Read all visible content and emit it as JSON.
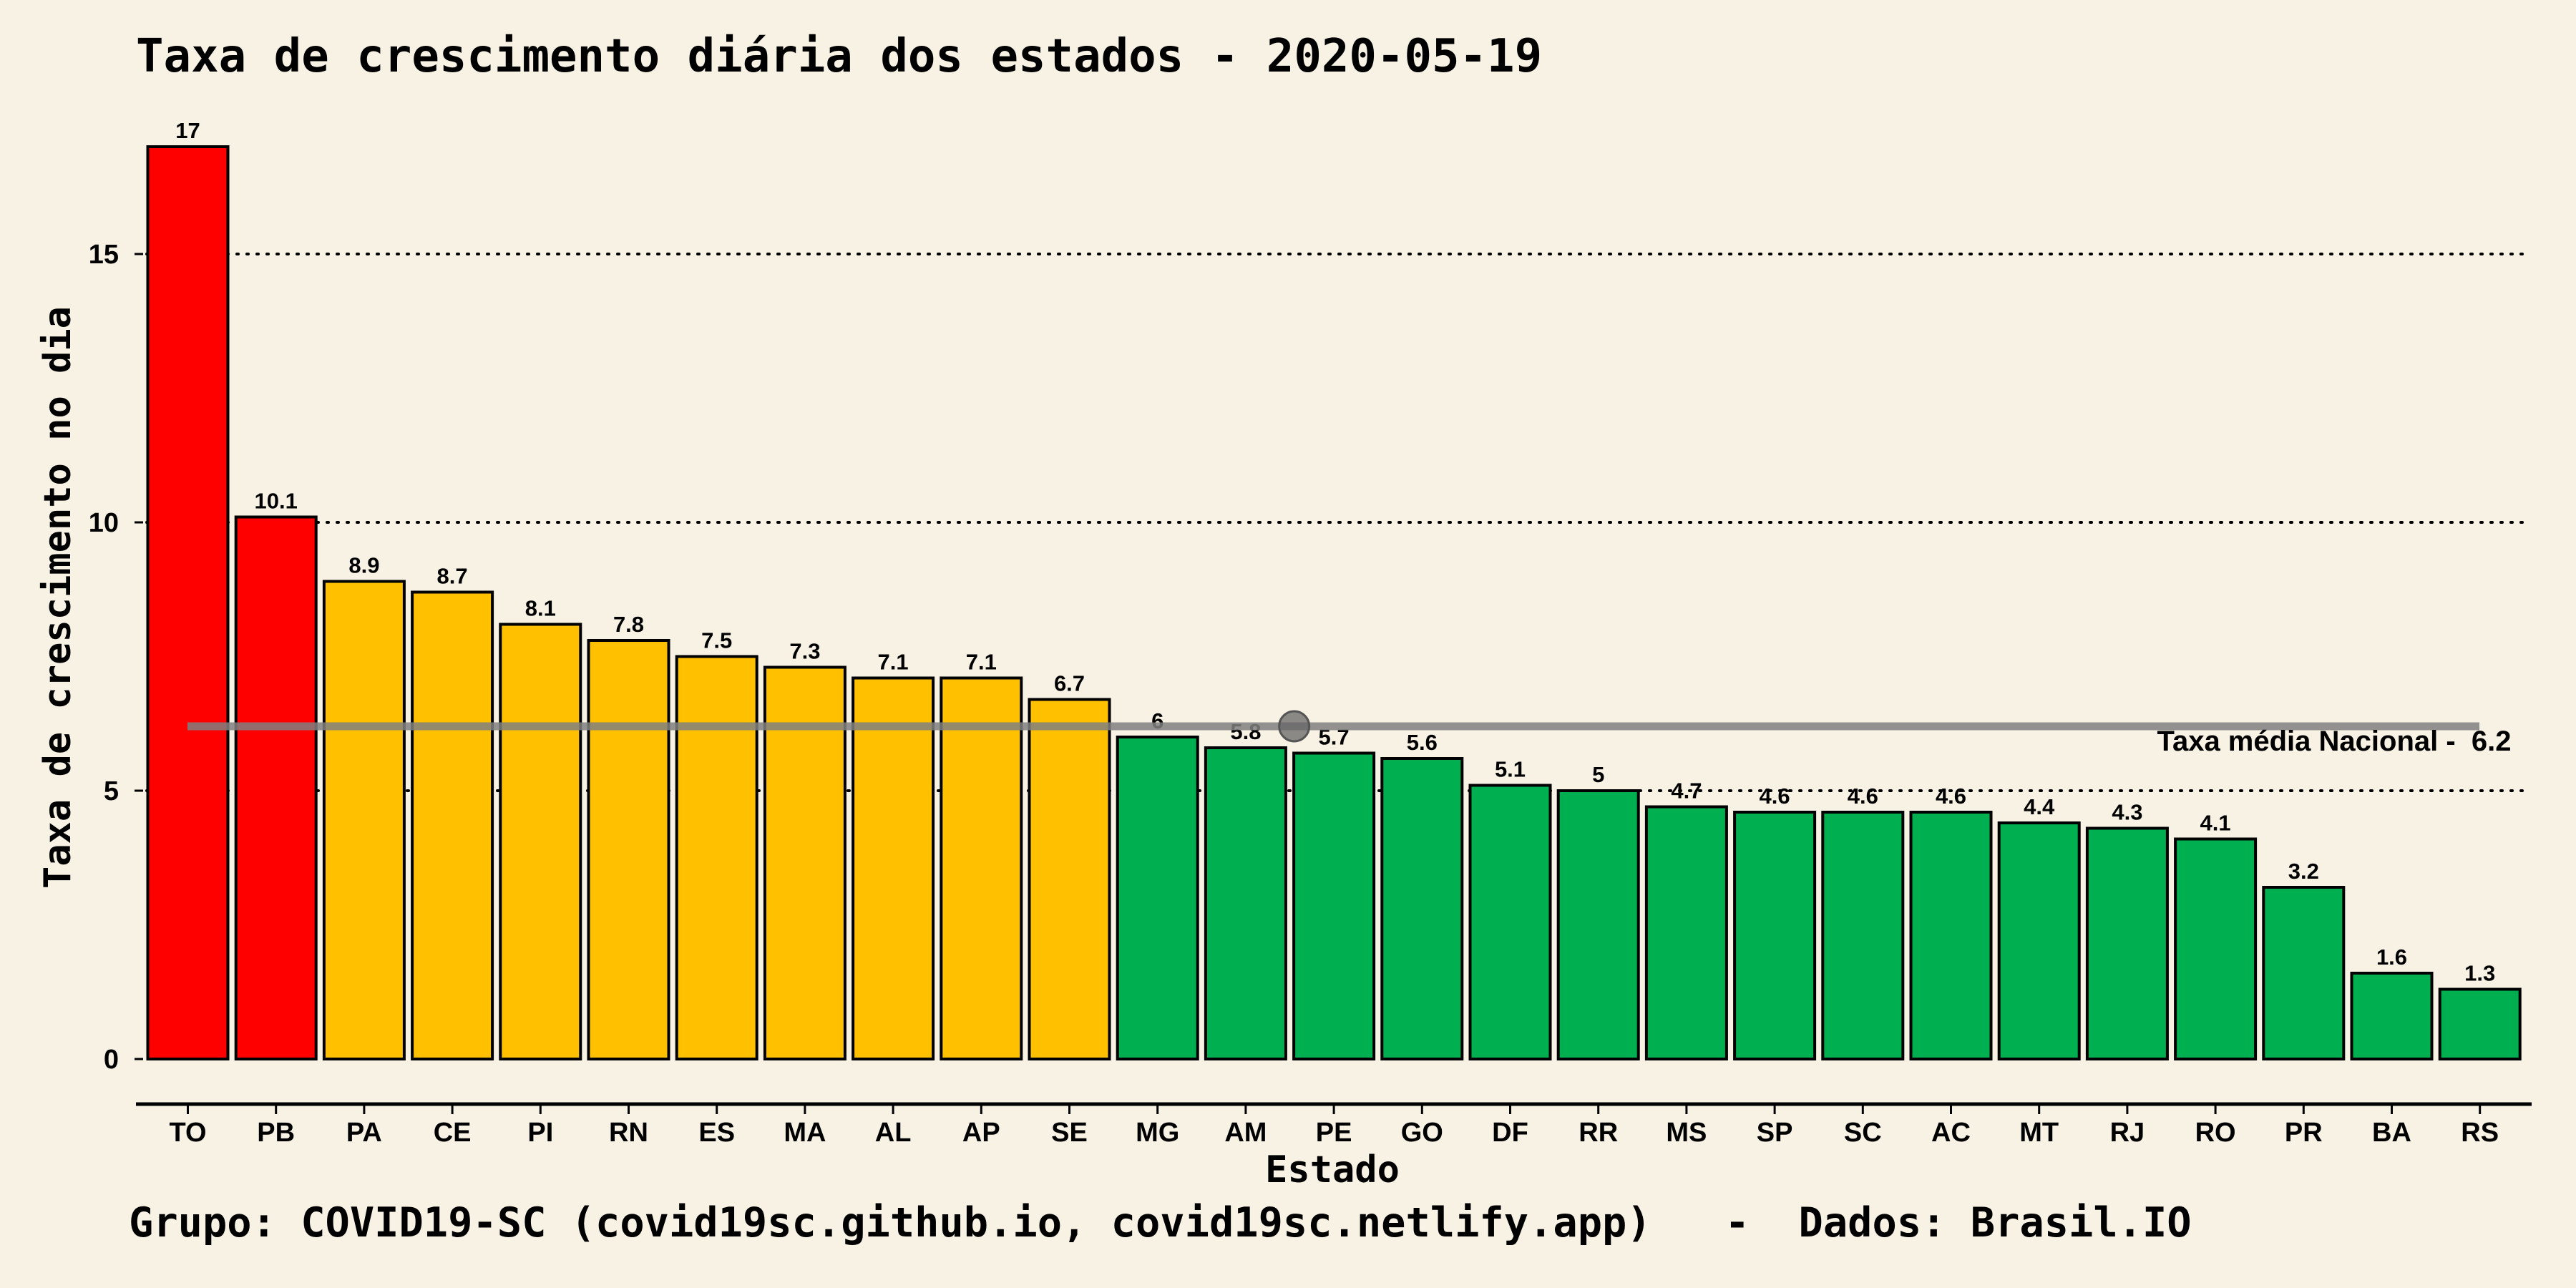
{
  "chart_data": {
    "type": "bar",
    "title": "Taxa de crescimento diária dos estados - 2020-05-19",
    "xlabel": "Estado",
    "ylabel": "Taxa de crescimento no dia",
    "caption": "Grupo: COVID19-SC (covid19sc.github.io, covid19sc.netlify.app)   -  Dados: Brasil.IO",
    "ylim": [
      0,
      17.5
    ],
    "yticks": [
      0,
      5,
      10,
      15
    ],
    "ytick_labels": [
      "0",
      "5",
      "10",
      "15"
    ],
    "grid": "horizontal dotted",
    "categories": [
      "TO",
      "PB",
      "PA",
      "CE",
      "PI",
      "RN",
      "ES",
      "MA",
      "AL",
      "AP",
      "SE",
      "MG",
      "AM",
      "PE",
      "GO",
      "DF",
      "RR",
      "MS",
      "SP",
      "SC",
      "AC",
      "MT",
      "RJ",
      "RO",
      "PR",
      "BA",
      "RS"
    ],
    "values": [
      17,
      10.1,
      8.9,
      8.7,
      8.1,
      7.8,
      7.5,
      7.3,
      7.1,
      7.1,
      6.7,
      6,
      5.8,
      5.7,
      5.6,
      5.1,
      5,
      4.7,
      4.6,
      4.6,
      4.6,
      4.4,
      4.3,
      4.1,
      3.2,
      1.6,
      1.3
    ],
    "value_labels": [
      "17",
      "10.1",
      "8.9",
      "8.7",
      "8.1",
      "7.8",
      "7.5",
      "7.3",
      "7.1",
      "7.1",
      "6.7",
      "6",
      "5.8",
      "5.7",
      "5.6",
      "5.1",
      "5",
      "4.7",
      "4.6",
      "4.6",
      "4.6",
      "4.4",
      "4.3",
      "4.1",
      "3.2",
      "1.6",
      "1.3"
    ],
    "bar_colors": [
      "#ff0000",
      "#ff0000",
      "#ffc000",
      "#ffc000",
      "#ffc000",
      "#ffc000",
      "#ffc000",
      "#ffc000",
      "#ffc000",
      "#ffc000",
      "#ffc000",
      "#00b050",
      "#00b050",
      "#00b050",
      "#00b050",
      "#00b050",
      "#00b050",
      "#00b050",
      "#00b050",
      "#00b050",
      "#00b050",
      "#00b050",
      "#00b050",
      "#00b050",
      "#00b050",
      "#00b050",
      "#00b050"
    ],
    "reference_line": {
      "value": 6.2,
      "label": "Taxa média Nacional -  6.2",
      "color": "#808080",
      "marker_category": "AM"
    }
  },
  "colors": {
    "background": "#f8f2e4",
    "high": "#ff0000",
    "medium": "#ffc000",
    "low": "#00b050"
  }
}
